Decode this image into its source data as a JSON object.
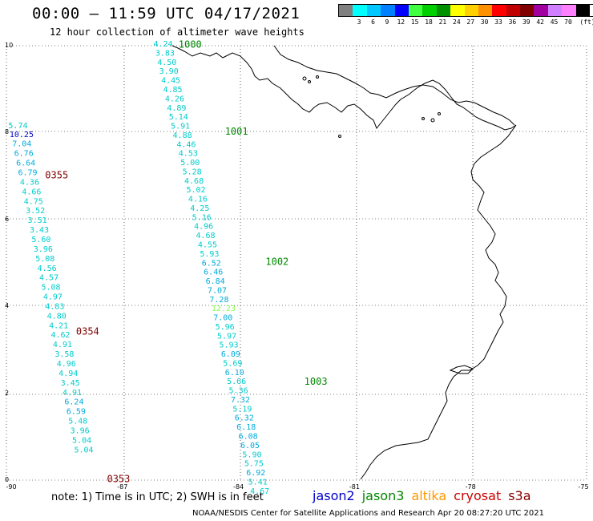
{
  "header": {
    "title": "00:00 – 11:59 UTC 04/17/2021",
    "subtitle": "12 hour collection of altimeter wave heights"
  },
  "legend": {
    "unit_label": "(ft)",
    "items": [
      {
        "label": "",
        "color": "#808080"
      },
      {
        "label": "3",
        "color": "#00ffff"
      },
      {
        "label": "6",
        "color": "#00c8ff"
      },
      {
        "label": "9",
        "color": "#0080ff"
      },
      {
        "label": "12",
        "color": "#0000ff"
      },
      {
        "label": "15",
        "color": "#40ff40"
      },
      {
        "label": "18",
        "color": "#00d000"
      },
      {
        "label": "21",
        "color": "#009000"
      },
      {
        "label": "24",
        "color": "#ffff00"
      },
      {
        "label": "27",
        "color": "#ffd000"
      },
      {
        "label": "30",
        "color": "#ff9000"
      },
      {
        "label": "33",
        "color": "#ff0000"
      },
      {
        "label": "36",
        "color": "#c00000"
      },
      {
        "label": "39",
        "color": "#800000"
      },
      {
        "label": "42",
        "color": "#a000a0"
      },
      {
        "label": "45",
        "color": "#d080ff"
      },
      {
        "label": "70",
        "color": "#ff80ff"
      },
      {
        "label": "",
        "color": "#000000"
      }
    ]
  },
  "axes": {
    "lon_ticks": [
      "-90",
      "-87",
      "-84",
      "-81",
      "-78",
      "-75"
    ],
    "lat_ticks": [
      "0",
      "2",
      "4",
      "6",
      "8",
      "10"
    ],
    "lon_range": [
      -90,
      -75
    ],
    "lat_range": [
      0,
      10
    ]
  },
  "footer": {
    "note": "note:  1) Time is in UTC;  2) SWH is in feet",
    "credit": "NOAA/NESDIS Center for Satellite Applications and Research     Apr 20 08:27:20 UTC 2021",
    "satellites": [
      {
        "name": "jason2",
        "color": "#0000cc"
      },
      {
        "name": "jason3",
        "color": "#008800"
      },
      {
        "name": "altika",
        "color": "#ff9900"
      },
      {
        "name": "cryosat",
        "color": "#cc0000"
      },
      {
        "name": "s3a",
        "color": "#880000"
      }
    ]
  },
  "tracks": [
    {
      "time_labels": [
        {
          "text": "0355",
          "color": "#800000",
          "lon": -89.0,
          "lat": 6.95
        },
        {
          "text": "0354",
          "color": "#800000",
          "lon": -88.2,
          "lat": 3.35
        },
        {
          "text": "0353",
          "color": "#800000",
          "lon": -87.4,
          "lat": -0.05
        }
      ],
      "points": [
        {
          "v": "5.74",
          "lon": -89.95,
          "lat": 8.1
        },
        {
          "v": "10.25",
          "lon": -89.92,
          "lat": 7.9
        },
        {
          "v": "7.04",
          "lon": -89.85,
          "lat": 7.68
        },
        {
          "v": "6.76",
          "lon": -89.8,
          "lat": 7.46
        },
        {
          "v": "6.64",
          "lon": -89.75,
          "lat": 7.24
        },
        {
          "v": "6.79",
          "lon": -89.7,
          "lat": 7.02
        },
        {
          "v": "4.36",
          "lon": -89.65,
          "lat": 6.8
        },
        {
          "v": "4.66",
          "lon": -89.6,
          "lat": 6.58
        },
        {
          "v": "4.75",
          "lon": -89.55,
          "lat": 6.36
        },
        {
          "v": "3.52",
          "lon": -89.5,
          "lat": 6.14
        },
        {
          "v": "3.51",
          "lon": -89.45,
          "lat": 5.92
        },
        {
          "v": "3.43",
          "lon": -89.4,
          "lat": 5.7
        },
        {
          "v": "5.60",
          "lon": -89.35,
          "lat": 5.48
        },
        {
          "v": "3.96",
          "lon": -89.3,
          "lat": 5.26
        },
        {
          "v": "5.08",
          "lon": -89.25,
          "lat": 5.04
        },
        {
          "v": "4.56",
          "lon": -89.2,
          "lat": 4.82
        },
        {
          "v": "4.57",
          "lon": -89.15,
          "lat": 4.6
        },
        {
          "v": "5.08",
          "lon": -89.1,
          "lat": 4.38
        },
        {
          "v": "4.97",
          "lon": -89.05,
          "lat": 4.16
        },
        {
          "v": "4.83",
          "lon": -89.0,
          "lat": 3.94
        },
        {
          "v": "4.80",
          "lon": -88.95,
          "lat": 3.72
        },
        {
          "v": "4.21",
          "lon": -88.9,
          "lat": 3.5
        },
        {
          "v": "4.62",
          "lon": -88.85,
          "lat": 3.28
        },
        {
          "v": "4.91",
          "lon": -88.8,
          "lat": 3.06
        },
        {
          "v": "3.58",
          "lon": -88.75,
          "lat": 2.84
        },
        {
          "v": "4.96",
          "lon": -88.7,
          "lat": 2.62
        },
        {
          "v": "4.94",
          "lon": -88.65,
          "lat": 2.4
        },
        {
          "v": "3.45",
          "lon": -88.6,
          "lat": 2.18
        },
        {
          "v": "4.91",
          "lon": -88.55,
          "lat": 1.96
        },
        {
          "v": "6.24",
          "lon": -88.5,
          "lat": 1.74
        },
        {
          "v": "6.59",
          "lon": -88.45,
          "lat": 1.52
        },
        {
          "v": "5.48",
          "lon": -88.4,
          "lat": 1.3
        },
        {
          "v": "3.96",
          "lon": -88.35,
          "lat": 1.08
        },
        {
          "v": "5.04",
          "lon": -88.3,
          "lat": 0.86
        },
        {
          "v": "5.04",
          "lon": -88.25,
          "lat": 0.64
        }
      ]
    },
    {
      "time_labels": [
        {
          "text": "1000",
          "color": "#008800",
          "lon": -85.55,
          "lat": 9.95
        },
        {
          "text": "1001",
          "color": "#008800",
          "lon": -84.35,
          "lat": 7.95
        },
        {
          "text": "1002",
          "color": "#008800",
          "lon": -83.3,
          "lat": 4.95
        },
        {
          "text": "1003",
          "color": "#008800",
          "lon": -82.3,
          "lat": 2.2
        }
      ],
      "points": [
        {
          "v": "4.24",
          "lon": -86.2,
          "lat": 9.98
        },
        {
          "v": "3.83",
          "lon": -86.15,
          "lat": 9.77
        },
        {
          "v": "4.50",
          "lon": -86.1,
          "lat": 9.56
        },
        {
          "v": "3.90",
          "lon": -86.05,
          "lat": 9.35
        },
        {
          "v": "4.45",
          "lon": -86.0,
          "lat": 9.14
        },
        {
          "v": "4.85",
          "lon": -85.95,
          "lat": 8.93
        },
        {
          "v": "4.26",
          "lon": -85.9,
          "lat": 8.72
        },
        {
          "v": "4.89",
          "lon": -85.85,
          "lat": 8.51
        },
        {
          "v": "5.14",
          "lon": -85.8,
          "lat": 8.3
        },
        {
          "v": "5.91",
          "lon": -85.75,
          "lat": 8.09
        },
        {
          "v": "4.88",
          "lon": -85.7,
          "lat": 7.88
        },
        {
          "v": "4.46",
          "lon": -85.6,
          "lat": 7.67
        },
        {
          "v": "4.53",
          "lon": -85.55,
          "lat": 7.46
        },
        {
          "v": "5.00",
          "lon": -85.5,
          "lat": 7.25
        },
        {
          "v": "5.28",
          "lon": -85.45,
          "lat": 7.04
        },
        {
          "v": "4.68",
          "lon": -85.4,
          "lat": 6.83
        },
        {
          "v": "5.02",
          "lon": -85.35,
          "lat": 6.62
        },
        {
          "v": "4.16",
          "lon": -85.3,
          "lat": 6.41
        },
        {
          "v": "4.25",
          "lon": -85.25,
          "lat": 6.2
        },
        {
          "v": "5.16",
          "lon": -85.2,
          "lat": 5.99
        },
        {
          "v": "4.96",
          "lon": -85.15,
          "lat": 5.78
        },
        {
          "v": "4.68",
          "lon": -85.1,
          "lat": 5.57
        },
        {
          "v": "4.55",
          "lon": -85.05,
          "lat": 5.36
        },
        {
          "v": "5.93",
          "lon": -85.0,
          "lat": 5.15
        },
        {
          "v": "6.52",
          "lon": -84.95,
          "lat": 4.94
        },
        {
          "v": "6.46",
          "lon": -84.9,
          "lat": 4.73
        },
        {
          "v": "6.84",
          "lon": -84.85,
          "lat": 4.52
        },
        {
          "v": "7.07",
          "lon": -84.8,
          "lat": 4.31
        },
        {
          "v": "7.28",
          "lon": -84.75,
          "lat": 4.1
        },
        {
          "v": "12.23",
          "lon": -84.7,
          "lat": 3.89,
          "color": "#80ff40"
        },
        {
          "v": "7.00",
          "lon": -84.65,
          "lat": 3.68
        },
        {
          "v": "5.96",
          "lon": -84.6,
          "lat": 3.47
        },
        {
          "v": "5.97",
          "lon": -84.55,
          "lat": 3.26
        },
        {
          "v": "5.93",
          "lon": -84.5,
          "lat": 3.05
        },
        {
          "v": "6.09",
          "lon": -84.45,
          "lat": 2.84
        },
        {
          "v": "5.69",
          "lon": -84.4,
          "lat": 2.63
        },
        {
          "v": "6.10",
          "lon": -84.35,
          "lat": 2.42
        },
        {
          "v": "5.66",
          "lon": -84.3,
          "lat": 2.21
        },
        {
          "v": "5.36",
          "lon": -84.25,
          "lat": 2.0
        },
        {
          "v": "7.32",
          "lon": -84.2,
          "lat": 1.79
        },
        {
          "v": "5.19",
          "lon": -84.15,
          "lat": 1.58
        },
        {
          "v": "6.32",
          "lon": -84.1,
          "lat": 1.37
        },
        {
          "v": "6.18",
          "lon": -84.05,
          "lat": 1.16
        },
        {
          "v": "6.08",
          "lon": -84.0,
          "lat": 0.95
        },
        {
          "v": "6.05",
          "lon": -83.95,
          "lat": 0.74
        },
        {
          "v": "5.90",
          "lon": -83.9,
          "lat": 0.53
        },
        {
          "v": "5.75",
          "lon": -83.85,
          "lat": 0.32
        },
        {
          "v": "6.92",
          "lon": -83.8,
          "lat": 0.11
        },
        {
          "v": "5.41",
          "lon": -83.75,
          "lat": -0.1
        },
        {
          "v": "4.67",
          "lon": -83.7,
          "lat": -0.31
        }
      ]
    }
  ]
}
